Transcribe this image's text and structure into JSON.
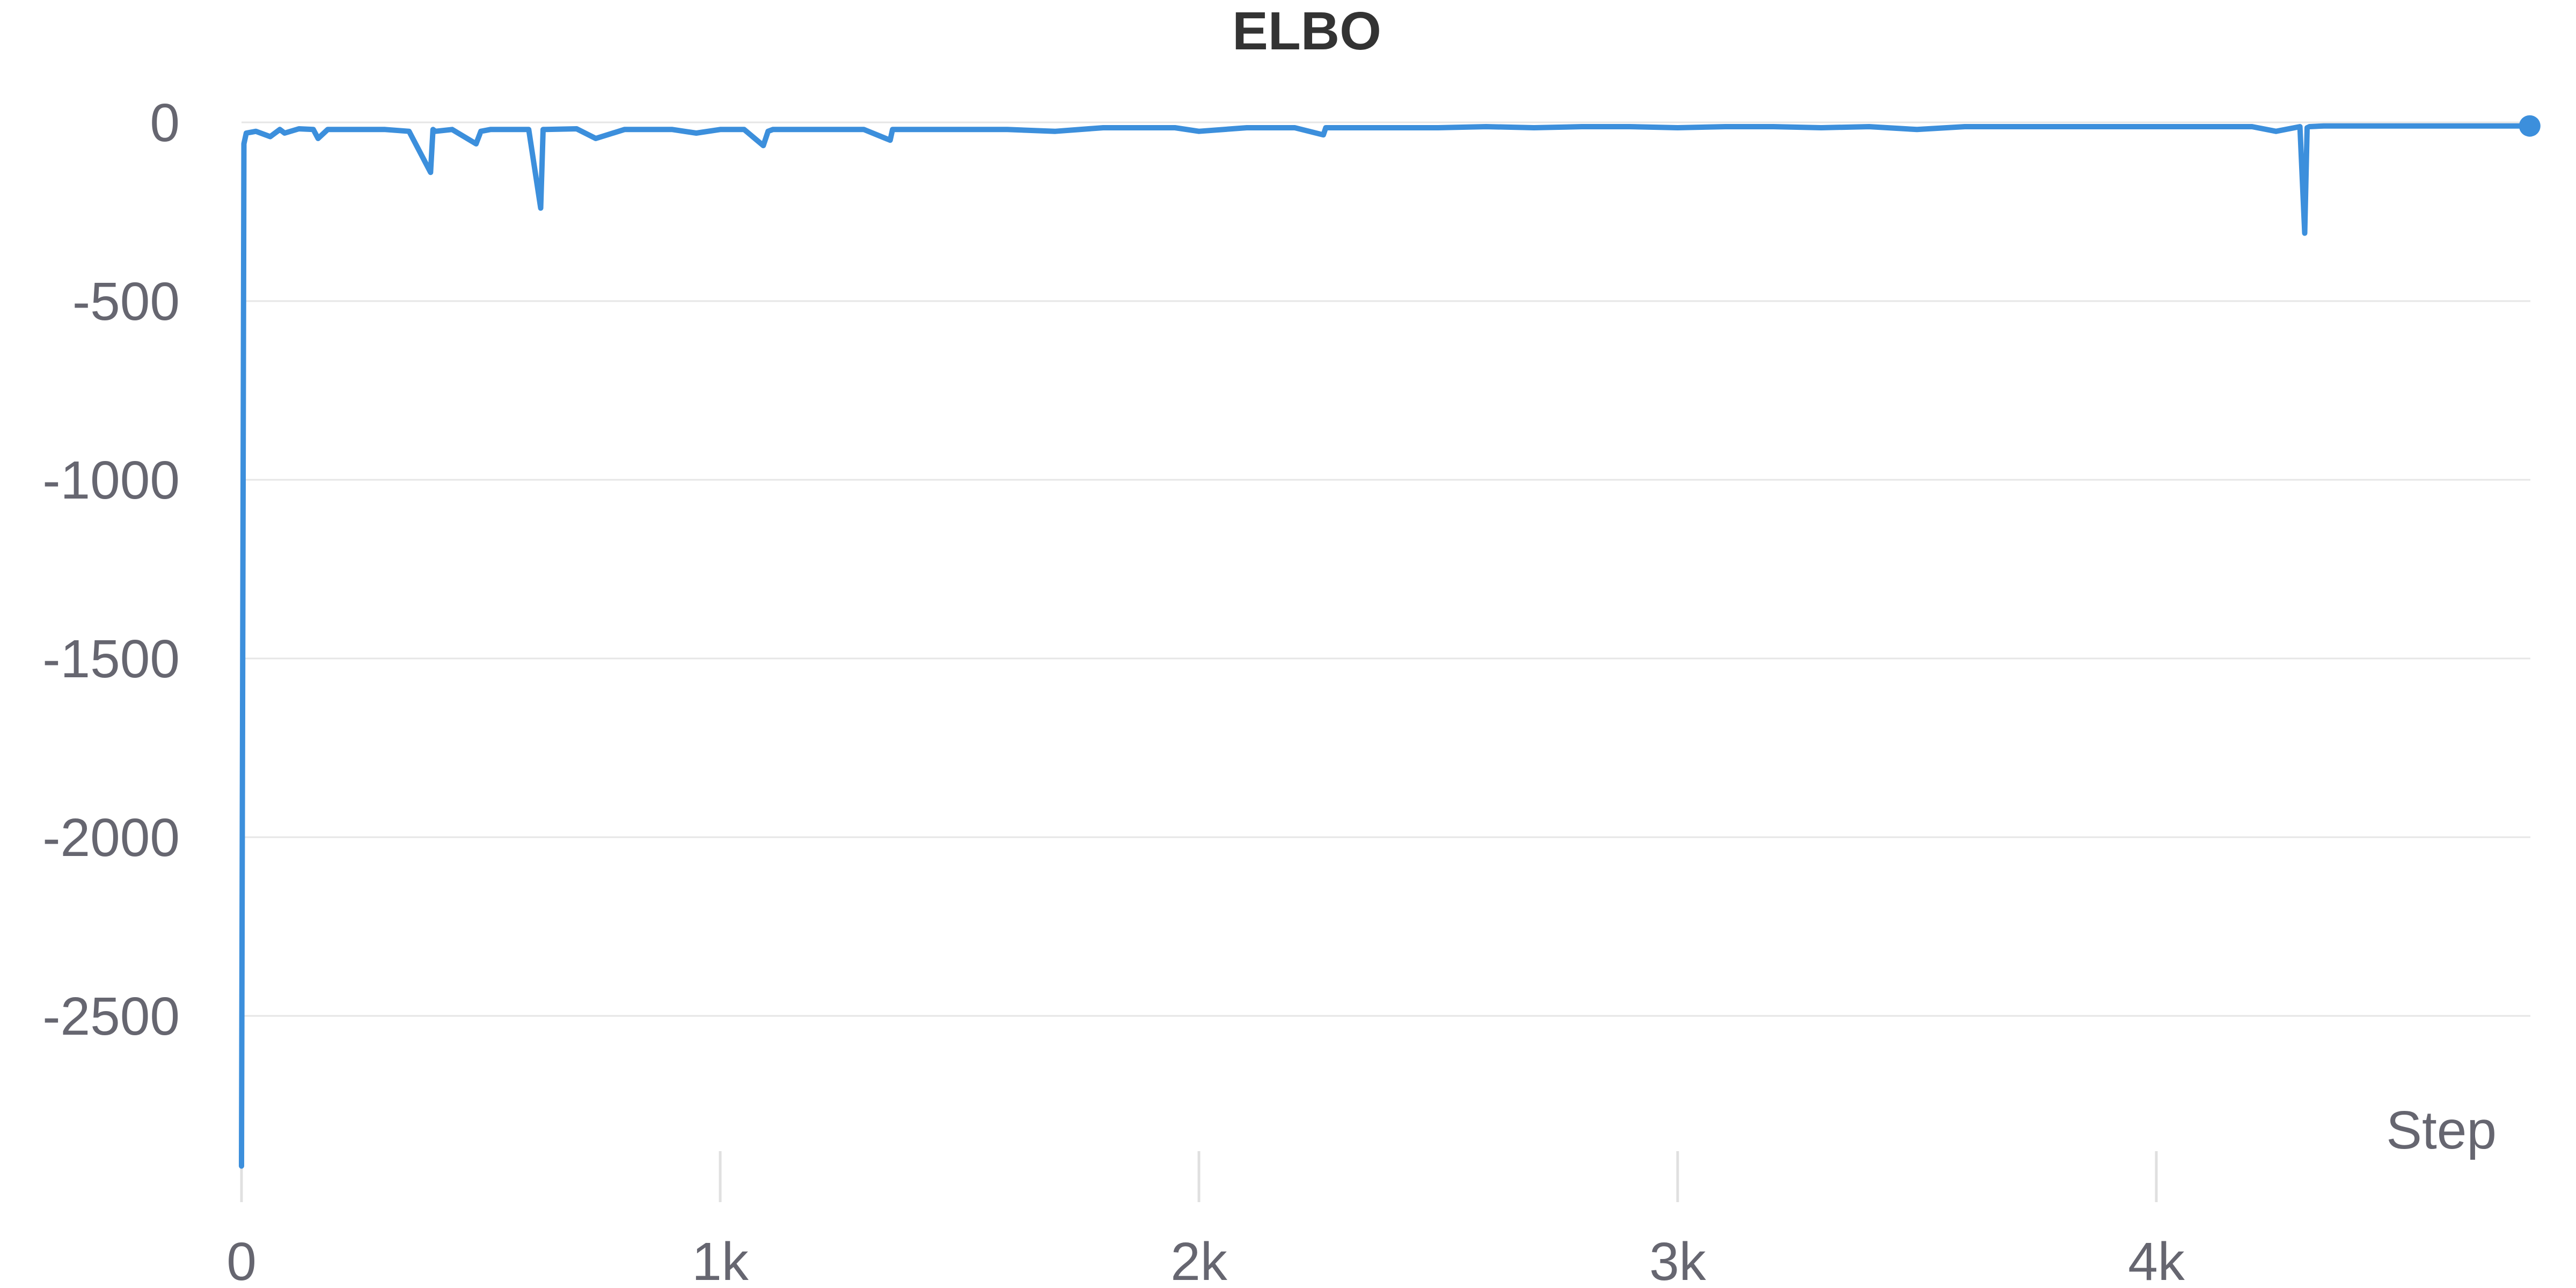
{
  "chart_data": {
    "type": "line",
    "title": "ELBO",
    "xlabel": "Step",
    "ylabel": "",
    "xlim": [
      0,
      4780
    ],
    "ylim": [
      -2950,
      80
    ],
    "x_ticks": [
      {
        "value": 0,
        "label": "0"
      },
      {
        "value": 1000,
        "label": "1k"
      },
      {
        "value": 2000,
        "label": "2k"
      },
      {
        "value": 3000,
        "label": "3k"
      },
      {
        "value": 4000,
        "label": "4k"
      }
    ],
    "y_ticks": [
      {
        "value": 0,
        "label": "0"
      },
      {
        "value": -500,
        "label": "-500"
      },
      {
        "value": -1000,
        "label": "-1000"
      },
      {
        "value": -1500,
        "label": "-1500"
      },
      {
        "value": -2000,
        "label": "-2000"
      },
      {
        "value": -2500,
        "label": "-2500"
      }
    ],
    "grid": true,
    "legend": "none",
    "colors": {
      "line": "#3c8fdc",
      "title": "#333333",
      "tick": "#666670",
      "grid": "#e6e6e6"
    },
    "series": [
      {
        "values": {
          "x": [
            0,
            5,
            10,
            30,
            60,
            80,
            90,
            120,
            150,
            160,
            180,
            250,
            300,
            350,
            395,
            400,
            405,
            440,
            490,
            500,
            520,
            600,
            625,
            630,
            635,
            700,
            740,
            800,
            900,
            950,
            1000,
            1050,
            1090,
            1100,
            1110,
            1200,
            1300,
            1355,
            1360,
            1365,
            1450,
            1500,
            1600,
            1700,
            1800,
            1950,
            2000,
            2100,
            2200,
            2260,
            2265,
            2270,
            2400,
            2500,
            2600,
            2700,
            2800,
            2900,
            3000,
            3100,
            3200,
            3300,
            3400,
            3500,
            3600,
            3700,
            3800,
            3900,
            4000,
            4100,
            4200,
            4250,
            4300,
            4310,
            4315,
            4320,
            4350,
            4400,
            4500,
            4600,
            4700,
            4780
          ],
          "y": [
            -2920,
            -60,
            -30,
            -25,
            -40,
            -20,
            -30,
            -18,
            -20,
            -45,
            -20,
            -20,
            -20,
            -25,
            -140,
            -20,
            -25,
            -20,
            -60,
            -25,
            -20,
            -20,
            -240,
            -20,
            -20,
            -18,
            -45,
            -20,
            -20,
            -30,
            -20,
            -20,
            -65,
            -25,
            -20,
            -20,
            -20,
            -50,
            -20,
            -20,
            -20,
            -20,
            -20,
            -25,
            -15,
            -15,
            -25,
            -15,
            -15,
            -35,
            -15,
            -15,
            -15,
            -15,
            -12,
            -15,
            -12,
            -12,
            -15,
            -12,
            -12,
            -15,
            -12,
            -20,
            -12,
            -12,
            -12,
            -12,
            -12,
            -12,
            -12,
            -25,
            -12,
            -310,
            -15,
            -12,
            -10,
            -10,
            -10,
            -10,
            -10,
            -10
          ]
        }
      }
    ]
  }
}
